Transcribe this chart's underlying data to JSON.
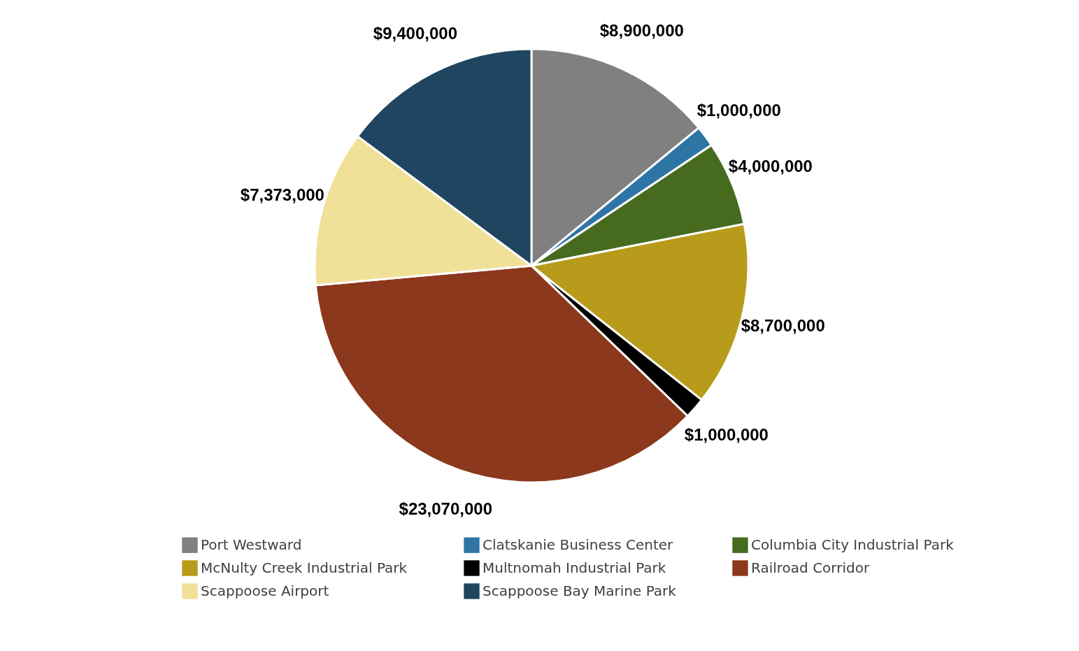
{
  "chart_data": {
    "type": "pie",
    "categories": [
      "Port Westward",
      "Clatskanie Business Center",
      "Columbia City Industrial Park",
      "McNulty Creek Industrial Park",
      "Multnomah Industrial Park",
      "Railroad Corridor",
      "Scappoose Airport",
      "Scappoose Bay Marine Park"
    ],
    "values": [
      8900000,
      1000000,
      4000000,
      8700000,
      1000000,
      23070000,
      7373000,
      9400000
    ],
    "colors": [
      "#808080",
      "#2e75a6",
      "#466b1f",
      "#b89b1a",
      "#000000",
      "#8b381c",
      "#f0e098",
      "#1f4560"
    ],
    "value_labels": [
      "$8,900,000",
      "$1,000,000",
      "$4,000,000",
      "$8,700,000",
      "$1,000,000",
      "$23,070,000",
      "$7,373,000",
      "$9,400,000"
    ],
    "legend": "bottom"
  }
}
